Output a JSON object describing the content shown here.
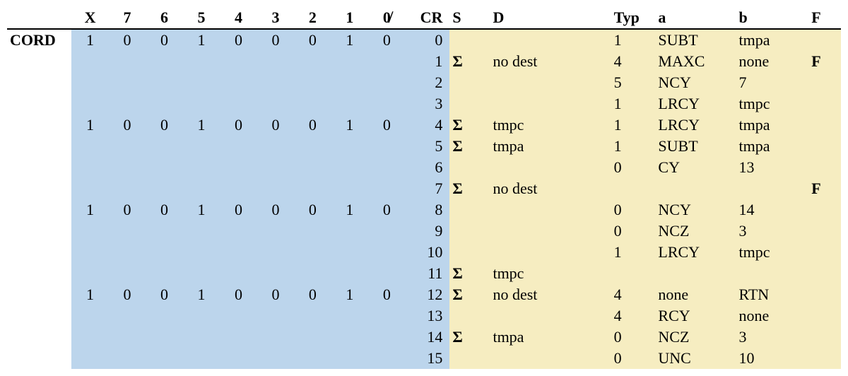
{
  "colors": {
    "blue_bg": "#bcd5ec",
    "yellow_bg": "#f6edc1",
    "text": "#000000",
    "rule": "#000000"
  },
  "typography": {
    "font_family": "Times New Roman",
    "font_size_pt": 16,
    "header_weight": "bold"
  },
  "columns": [
    {
      "key": "label",
      "label": "",
      "class": "label-col"
    },
    {
      "key": "X",
      "label": "X",
      "class": "bit-col"
    },
    {
      "key": "b7",
      "label": "7",
      "class": "bit-col"
    },
    {
      "key": "b6",
      "label": "6",
      "class": "bit-col"
    },
    {
      "key": "b5",
      "label": "5",
      "class": "bit-col"
    },
    {
      "key": "b4",
      "label": "4",
      "class": "bit-col"
    },
    {
      "key": "b3",
      "label": "3",
      "class": "bit-col"
    },
    {
      "key": "b2",
      "label": "2",
      "class": "bit-col"
    },
    {
      "key": "b1",
      "label": "1",
      "class": "bit-col"
    },
    {
      "key": "b0",
      "label": "0̸",
      "class": "bit-col"
    },
    {
      "key": "CR",
      "label": "CR",
      "class": "cr-col"
    },
    {
      "key": "S",
      "label": "S",
      "class": "s-col"
    },
    {
      "key": "D",
      "label": "D",
      "class": "d-col"
    },
    {
      "key": "Typ",
      "label": "Typ",
      "class": "typ-col"
    },
    {
      "key": "a",
      "label": "a",
      "class": "a-col"
    },
    {
      "key": "b",
      "label": "b",
      "class": "b-col"
    },
    {
      "key": "F",
      "label": "F",
      "class": "f-col"
    }
  ],
  "rows": [
    {
      "label": "CORD",
      "X": "1",
      "b7": "0",
      "b6": "0",
      "b5": "1",
      "b4": "0",
      "b3": "0",
      "b2": "0",
      "b1": "1",
      "b0": "0",
      "CR": "0",
      "S": "",
      "D": "",
      "Typ": "1",
      "a": "SUBT",
      "b": "tmpa",
      "F": ""
    },
    {
      "label": "",
      "X": "",
      "b7": "",
      "b6": "",
      "b5": "",
      "b4": "",
      "b3": "",
      "b2": "",
      "b1": "",
      "b0": "",
      "CR": "1",
      "S": "Σ",
      "D": "no dest",
      "Typ": "4",
      "a": "MAXC",
      "b": "none",
      "F": "F"
    },
    {
      "label": "",
      "X": "",
      "b7": "",
      "b6": "",
      "b5": "",
      "b4": "",
      "b3": "",
      "b2": "",
      "b1": "",
      "b0": "",
      "CR": "2",
      "S": "",
      "D": "",
      "Typ": "5",
      "a": "NCY",
      "b": "7",
      "F": ""
    },
    {
      "label": "",
      "X": "",
      "b7": "",
      "b6": "",
      "b5": "",
      "b4": "",
      "b3": "",
      "b2": "",
      "b1": "",
      "b0": "",
      "CR": "3",
      "S": "",
      "D": "",
      "Typ": "1",
      "a": "LRCY",
      "b": "tmpc",
      "F": ""
    },
    {
      "label": "",
      "X": "1",
      "b7": "0",
      "b6": "0",
      "b5": "1",
      "b4": "0",
      "b3": "0",
      "b2": "0",
      "b1": "1",
      "b0": "0",
      "CR": "4",
      "S": "Σ",
      "D": "tmpc",
      "Typ": "1",
      "a": "LRCY",
      "b": "tmpa",
      "F": ""
    },
    {
      "label": "",
      "X": "",
      "b7": "",
      "b6": "",
      "b5": "",
      "b4": "",
      "b3": "",
      "b2": "",
      "b1": "",
      "b0": "",
      "CR": "5",
      "S": "Σ",
      "D": "tmpa",
      "Typ": "1",
      "a": "SUBT",
      "b": "tmpa",
      "F": ""
    },
    {
      "label": "",
      "X": "",
      "b7": "",
      "b6": "",
      "b5": "",
      "b4": "",
      "b3": "",
      "b2": "",
      "b1": "",
      "b0": "",
      "CR": "6",
      "S": "",
      "D": "",
      "Typ": "0",
      "a": "CY",
      "b": "13",
      "F": ""
    },
    {
      "label": "",
      "X": "",
      "b7": "",
      "b6": "",
      "b5": "",
      "b4": "",
      "b3": "",
      "b2": "",
      "b1": "",
      "b0": "",
      "CR": "7",
      "S": "Σ",
      "D": "no dest",
      "Typ": "",
      "a": "",
      "b": "",
      "F": "F"
    },
    {
      "label": "",
      "X": "1",
      "b7": "0",
      "b6": "0",
      "b5": "1",
      "b4": "0",
      "b3": "0",
      "b2": "0",
      "b1": "1",
      "b0": "0",
      "CR": "8",
      "S": "",
      "D": "",
      "Typ": "0",
      "a": "NCY",
      "b": "14",
      "F": ""
    },
    {
      "label": "",
      "X": "",
      "b7": "",
      "b6": "",
      "b5": "",
      "b4": "",
      "b3": "",
      "b2": "",
      "b1": "",
      "b0": "",
      "CR": "9",
      "S": "",
      "D": "",
      "Typ": "0",
      "a": "NCZ",
      "b": "3",
      "F": ""
    },
    {
      "label": "",
      "X": "",
      "b7": "",
      "b6": "",
      "b5": "",
      "b4": "",
      "b3": "",
      "b2": "",
      "b1": "",
      "b0": "",
      "CR": "10",
      "S": "",
      "D": "",
      "Typ": "1",
      "a": "LRCY",
      "b": "tmpc",
      "F": ""
    },
    {
      "label": "",
      "X": "",
      "b7": "",
      "b6": "",
      "b5": "",
      "b4": "",
      "b3": "",
      "b2": "",
      "b1": "",
      "b0": "",
      "CR": "11",
      "S": "Σ",
      "D": "tmpc",
      "Typ": "",
      "a": "",
      "b": "",
      "F": ""
    },
    {
      "label": "",
      "X": "1",
      "b7": "0",
      "b6": "0",
      "b5": "1",
      "b4": "0",
      "b3": "0",
      "b2": "0",
      "b1": "1",
      "b0": "0",
      "CR": "12",
      "S": "Σ",
      "D": "no dest",
      "Typ": "4",
      "a": "none",
      "b": "RTN",
      "F": ""
    },
    {
      "label": "",
      "X": "",
      "b7": "",
      "b6": "",
      "b5": "",
      "b4": "",
      "b3": "",
      "b2": "",
      "b1": "",
      "b0": "",
      "CR": "13",
      "S": "",
      "D": "",
      "Typ": "4",
      "a": "RCY",
      "b": "none",
      "F": ""
    },
    {
      "label": "",
      "X": "",
      "b7": "",
      "b6": "",
      "b5": "",
      "b4": "",
      "b3": "",
      "b2": "",
      "b1": "",
      "b0": "",
      "CR": "14",
      "S": "Σ",
      "D": "tmpa",
      "Typ": "0",
      "a": "NCZ",
      "b": "3",
      "F": ""
    },
    {
      "label": "",
      "X": "",
      "b7": "",
      "b6": "",
      "b5": "",
      "b4": "",
      "b3": "",
      "b2": "",
      "b1": "",
      "b0": "",
      "CR": "15",
      "S": "",
      "D": "",
      "Typ": "0",
      "a": "UNC",
      "b": "10",
      "F": ""
    }
  ]
}
